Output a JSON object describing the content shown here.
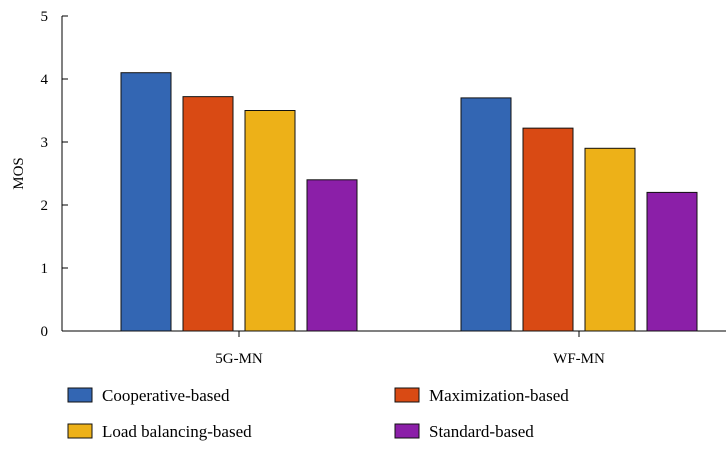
{
  "chart_data": {
    "type": "bar",
    "title": "",
    "xlabel": "",
    "ylabel": "MOS",
    "ylim": [
      0,
      5
    ],
    "yticks": [
      0,
      1,
      2,
      3,
      4,
      5
    ],
    "categories": [
      "5G-MN",
      "WF-MN"
    ],
    "series": [
      {
        "name": "Cooperative-based",
        "color": "#3366b3",
        "values": [
          4.1,
          3.7
        ]
      },
      {
        "name": "Maximization-based",
        "color": "#d94a14",
        "values": [
          3.72,
          3.22
        ]
      },
      {
        "name": "Load balancing-based",
        "color": "#edb118",
        "values": [
          3.5,
          2.9
        ]
      },
      {
        "name": "Standard-based",
        "color": "#8b1fa8",
        "values": [
          2.4,
          2.2
        ]
      }
    ],
    "grid": false,
    "legend_position": "bottom"
  }
}
